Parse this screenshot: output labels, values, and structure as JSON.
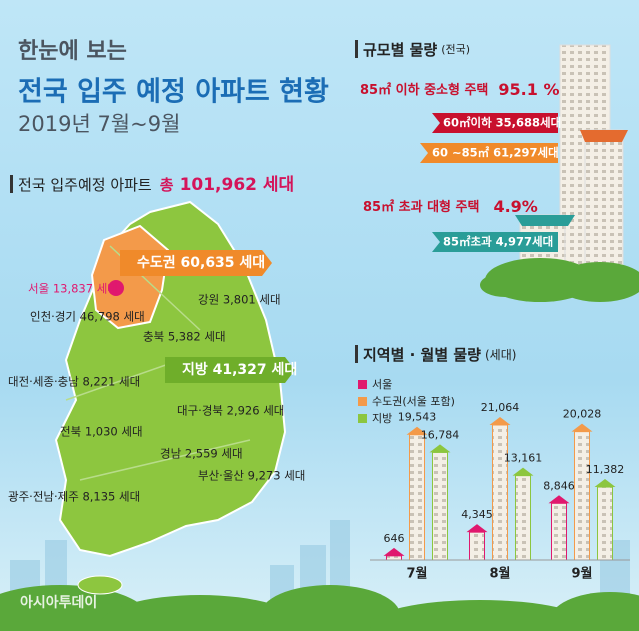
{
  "header": {
    "line1": "한눈에 보는",
    "line2": "전국 입주 예정 아파트 현황",
    "period": "2019년  7월~9월"
  },
  "total": {
    "label": "전국 입주예정 아파트",
    "prefix": "총",
    "value": "101,962 세대"
  },
  "map": {
    "capital_area": "수도권 60,635 세대",
    "provinces": "지방 41,327 세대",
    "regions": [
      "서울 13,837 세대",
      "인천·경기 46,798 세대",
      "강원 3,801 세대",
      "충북 5,382 세대",
      "대전·세종·충남 8,221 세대",
      "대구·경북 2,926 세대",
      "전북 1,030 세대",
      "경남 2,559 세대",
      "부산·울산 9,273 세대",
      "광주·전남·제주 8,135 세대"
    ]
  },
  "size": {
    "title": "규모별 물량",
    "scope": "(전국)",
    "small_label": "85㎡ 이하 중소형 주택",
    "small_share": "95.1 %",
    "under60": "60㎡이하 35,688세대",
    "from60to85": "60 ~85㎡ 61,297세대",
    "large_label": "85㎡  초과 대형 주택",
    "large_share": "4.9%",
    "over85": "85㎡초과 4,977세대"
  },
  "chart_data": {
    "type": "bar",
    "title": "지역별 · 월별 물량",
    "unit": "(세대)",
    "categories": [
      "7월",
      "8월",
      "9월"
    ],
    "series": [
      {
        "name": "서울",
        "color": "#e0196e",
        "values": [
          646,
          4345,
          8846
        ],
        "value_labels": [
          "646",
          "4,345",
          "8,846"
        ]
      },
      {
        "name": "수도권(서울 포함)",
        "color": "#f39a4a",
        "values": [
          19543,
          21064,
          20028
        ],
        "value_labels": [
          "19,543",
          "21,064",
          "20,028"
        ]
      },
      {
        "name": "지방",
        "color": "#8cc63f",
        "values": [
          16784,
          13161,
          11382
        ],
        "value_labels": [
          "16,784",
          "13,161",
          "11,382"
        ]
      }
    ]
  },
  "footer": {
    "source": "아시아투데이"
  }
}
